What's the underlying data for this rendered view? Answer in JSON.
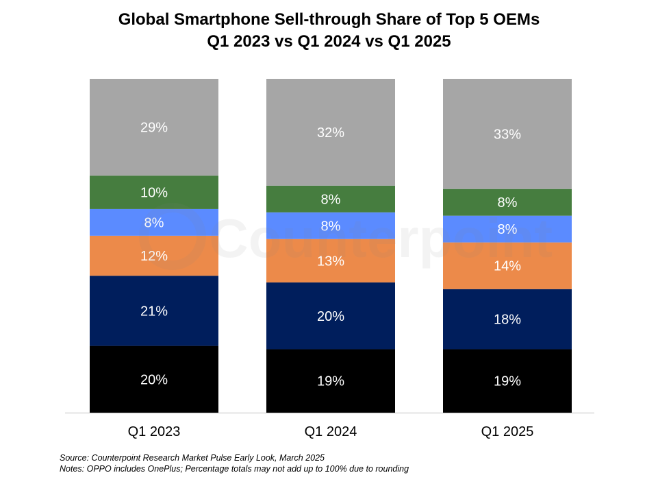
{
  "chart_data": {
    "type": "bar",
    "stacked": true,
    "title": "Global Smartphone Sell-through Share of Top 5 OEMs",
    "subtitle": "Q1 2023 vs Q1 2024 vs Q1 2025",
    "xlabel": "",
    "ylabel": "",
    "categories": [
      "Q1 2023",
      "Q1 2024",
      "Q1 2025"
    ],
    "series": [
      {
        "values": [
          20,
          19,
          19
        ],
        "color": "#000000"
      },
      {
        "values": [
          21,
          20,
          18
        ],
        "color": "#001e5c"
      },
      {
        "values": [
          12,
          13,
          14
        ],
        "color": "#ec8a4a"
      },
      {
        "values": [
          8,
          8,
          8
        ],
        "color": "#5b8bff"
      },
      {
        "values": [
          10,
          8,
          8
        ],
        "color": "#467d3f"
      },
      {
        "values": [
          29,
          32,
          33
        ],
        "color": "#a6a6a6"
      }
    ],
    "value_suffix": "%",
    "grid": false,
    "legend": "none"
  },
  "watermark": "Counterpoint",
  "notes": {
    "source": "Source: Counterpoint Research Market Pulse Early Look, March 2025",
    "notes": "Notes: OPPO includes OnePlus; Percentage totals may not add up to 100% due to rounding"
  }
}
